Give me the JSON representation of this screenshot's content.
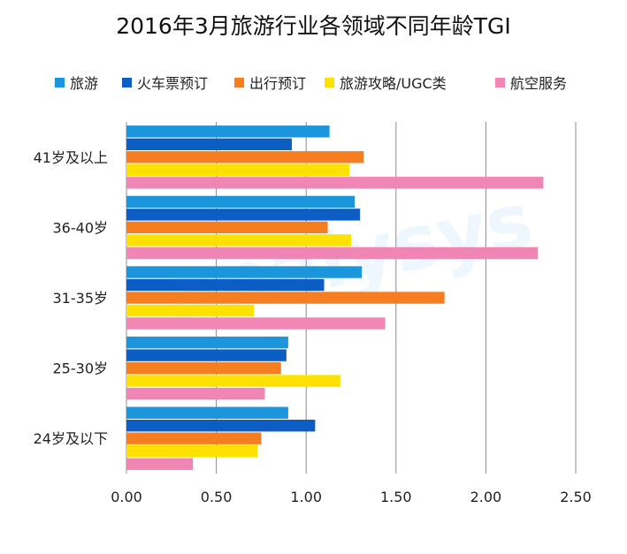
{
  "chart_data": {
    "type": "bar",
    "orientation": "horizontal",
    "title": "2016年3月旅游行业各领域不同年龄TGI",
    "xlabel": "",
    "ylabel": "",
    "xlim": [
      0,
      2.5
    ],
    "x_ticks": [
      "0.00",
      "0.50",
      "1.00",
      "1.50",
      "2.00",
      "2.50"
    ],
    "grid": "vertical",
    "legend_position": "top",
    "watermark": "analysys",
    "categories": [
      "41岁及以上",
      "36-40岁",
      "31-35岁",
      "25-30岁",
      "24岁及以下"
    ],
    "series": [
      {
        "name": "旅游",
        "color": "#1B96DD",
        "values": [
          1.13,
          1.27,
          1.31,
          0.9,
          0.9
        ]
      },
      {
        "name": "火车票预订",
        "color": "#0D5EC4",
        "values": [
          0.92,
          1.3,
          1.1,
          0.89,
          1.05
        ]
      },
      {
        "name": "出行预订",
        "color": "#F77E20",
        "values": [
          1.32,
          1.12,
          1.77,
          0.86,
          0.75
        ]
      },
      {
        "name": "旅游攻略/UGC类",
        "color": "#FFE100",
        "values": [
          1.24,
          1.25,
          0.71,
          1.19,
          0.73
        ]
      },
      {
        "name": "航空服务",
        "color": "#F086B4",
        "values": [
          2.32,
          2.29,
          1.44,
          0.77,
          0.37
        ]
      }
    ]
  }
}
